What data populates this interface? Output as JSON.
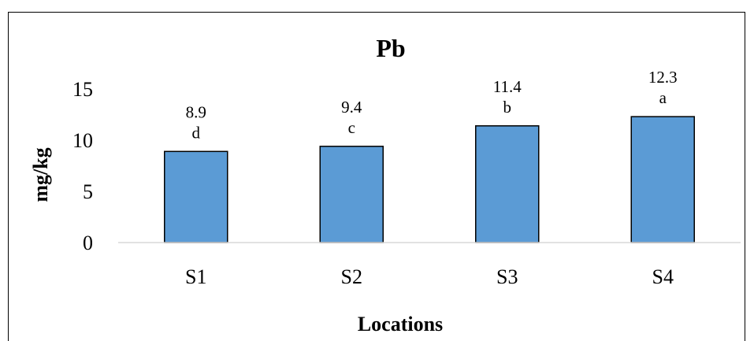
{
  "chart_data": {
    "type": "bar",
    "title": "Pb",
    "xlabel": "Locations",
    "ylabel": "mg/kg",
    "categories": [
      "S1",
      "S2",
      "S3",
      "S4"
    ],
    "values": [
      8.9,
      9.4,
      11.4,
      12.3
    ],
    "value_labels": [
      "8.9",
      "9.4",
      "11.4",
      "12.3"
    ],
    "significance_letters": [
      "d",
      "c",
      "b",
      "a"
    ],
    "yticks": [
      0,
      5,
      10,
      15
    ],
    "ylim": [
      0,
      15
    ],
    "grid": false,
    "legend": "none",
    "bar_color": "#5b9bd5",
    "bar_edge_color": "#000000"
  }
}
